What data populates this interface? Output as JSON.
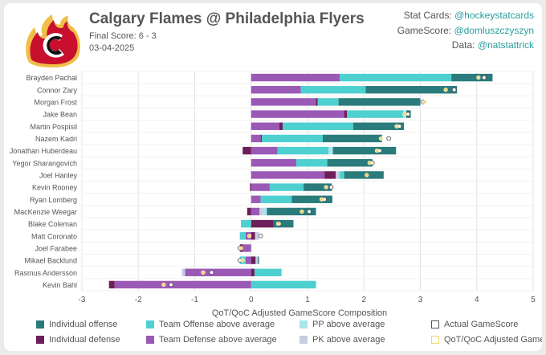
{
  "header": {
    "title": "Calgary Flames @ Philadelphia Flyers",
    "final_score": "Final Score: 6 - 3",
    "date": "03-04-2025",
    "credits": [
      {
        "label": "Stat Cards: ",
        "handle": "@hockeystatcards"
      },
      {
        "label": "GameScore: ",
        "handle": "@domluszczyszyn"
      },
      {
        "label": "Data: ",
        "handle": "@natstattrick"
      }
    ]
  },
  "chart_data": {
    "type": "bar",
    "orientation": "horizontal-stacked",
    "xlabel": "QoT/QoC Adjusted GameScore Composition",
    "xlim": [
      -3,
      5
    ],
    "xticks": [
      -3,
      -2,
      -1,
      0,
      1,
      2,
      3,
      4,
      5
    ],
    "grid": true,
    "colors": {
      "ind_off": "#2a7b7b",
      "team_off": "#4fd0d0",
      "pp": "#a9e4ea",
      "ind_def": "#6e1f5a",
      "team_def": "#9b59b6",
      "pk": "#c8cde0",
      "adj_marker": "#f5d76e"
    },
    "categories": [
      "Brayden Pachal",
      "Connor Zary",
      "Morgan Frost",
      "Jake Bean",
      "Martin Pospisil",
      "Nazem Kadri",
      "Jonathan Huberdeau",
      "Yegor Sharangovich",
      "Joel Hanley",
      "Kevin Rooney",
      "Ryan Lomberg",
      "MacKenzie Weegar",
      "Blake Coleman",
      "Matt Coronato",
      "Joel Farabee",
      "Mikael Backlund",
      "Rasmus Andersson",
      "Kevin Bahl"
    ],
    "series": [
      {
        "key": "team_def",
        "name": "Team Defense above average",
        "values": [
          1.57,
          0.88,
          1.15,
          1.65,
          0.5,
          0.17,
          0.47,
          0.8,
          1.3,
          0.33,
          0.17,
          0.15,
          0.0,
          -0.1,
          -0.15,
          -0.1,
          -1.17,
          -2.42
        ]
      },
      {
        "key": "ind_def",
        "name": "Individual defense",
        "values": [
          0,
          0,
          0.03,
          0.05,
          0.06,
          0.02,
          -0.15,
          0,
          0.2,
          -0.02,
          0,
          -0.07,
          0.4,
          0.07,
          -0.05,
          0.08,
          0.06,
          -0.1
        ]
      },
      {
        "key": "pk",
        "name": "PK above average",
        "values": [
          0,
          0,
          0,
          0,
          0,
          0,
          0,
          0,
          0.07,
          0,
          0,
          0.05,
          0,
          0.07,
          0,
          0.04,
          -0.06,
          0
        ]
      },
      {
        "key": "team_off",
        "name": "Team Offense above average",
        "values": [
          1.98,
          1.15,
          0.37,
          1.0,
          1.25,
          1.08,
          0.9,
          0.55,
          0.08,
          0.6,
          0.55,
          0,
          -0.18,
          -0.1,
          0,
          -0.1,
          0.48,
          1.15
        ]
      },
      {
        "key": "pp",
        "name": "PP above average",
        "values": [
          0,
          0,
          0,
          0.05,
          0,
          0,
          0.08,
          0,
          0,
          0,
          0,
          0.08,
          0,
          0,
          0,
          0,
          0,
          0
        ]
      },
      {
        "key": "ind_off",
        "name": "Individual offense",
        "values": [
          0.73,
          1.62,
          1.45,
          0.08,
          0.9,
          1.05,
          1.12,
          0.8,
          0.7,
          0.5,
          0.72,
          0.87,
          0.35,
          0.0,
          0,
          0.02,
          0,
          0
        ]
      }
    ],
    "actual_gamescore": [
      4.13,
      3.6,
      3.05,
      2.78,
      2.63,
      2.44,
      2.28,
      2.15,
      2.05,
      1.42,
      1.3,
      1.03,
      0.5,
      0.17,
      -0.2,
      -0.2,
      -0.7,
      -1.42
    ],
    "adjusted_gamescore": [
      4.03,
      3.45,
      3.08,
      2.72,
      2.58,
      2.3,
      2.23,
      2.1,
      2.05,
      1.33,
      1.25,
      0.9,
      0.48,
      -0.03,
      -0.18,
      -0.15,
      -0.85,
      -1.55
    ],
    "legend": [
      {
        "key": "ind_off",
        "label": "Individual offense",
        "style": "fill"
      },
      {
        "key": "team_off",
        "label": "Team Offense above average",
        "style": "fill"
      },
      {
        "key": "pp",
        "label": "PP above average",
        "style": "fill"
      },
      {
        "key": "actual",
        "label": "Actual GameScore",
        "style": "outline-dark"
      },
      {
        "key": "ind_def",
        "label": "Individual defense",
        "style": "fill"
      },
      {
        "key": "team_def",
        "label": "Team Defense above average",
        "style": "fill"
      },
      {
        "key": "pk",
        "label": "PK above average",
        "style": "fill"
      },
      {
        "key": "adjusted",
        "label": "QoT/QoC Adjusted GameScore",
        "style": "outline-gold"
      }
    ]
  }
}
